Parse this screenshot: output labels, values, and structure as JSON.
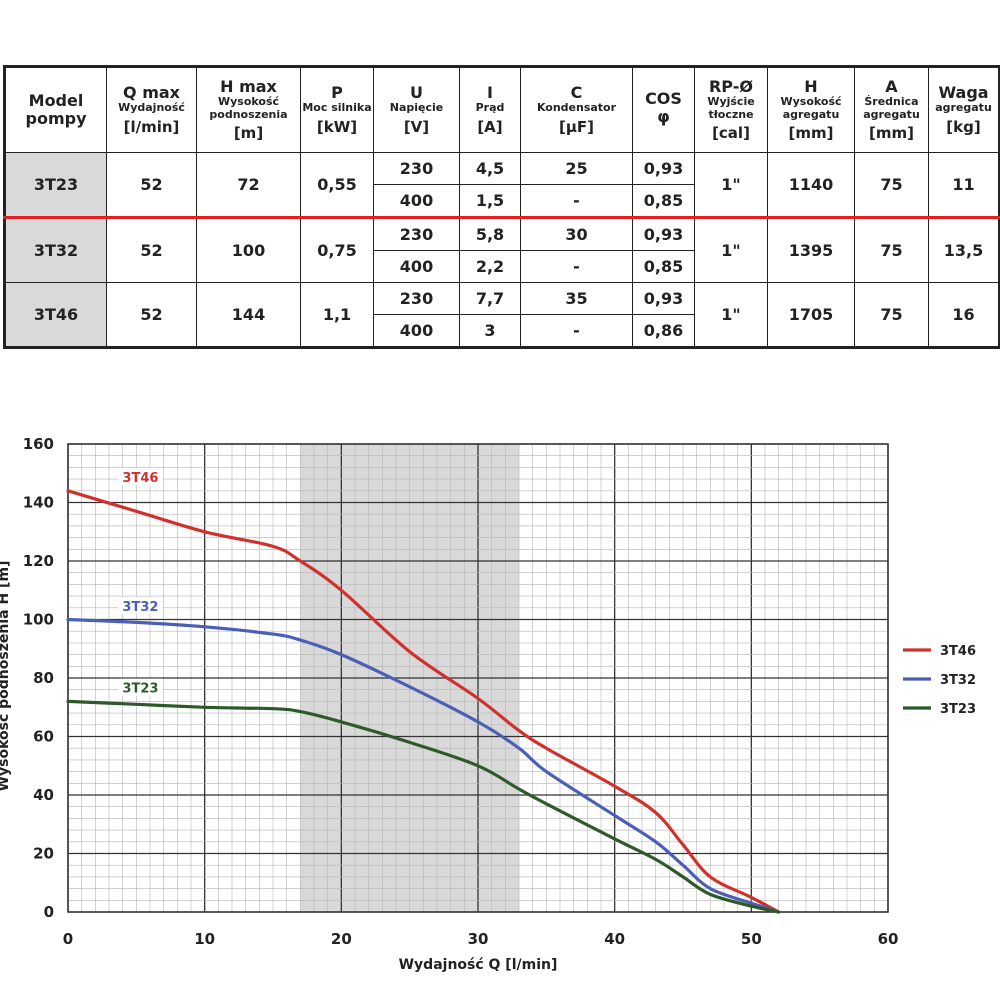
{
  "table": {
    "headers": [
      {
        "sym": "Model pompy",
        "desc": "",
        "unit": ""
      },
      {
        "sym": "Q max",
        "desc": "Wydajność",
        "unit": "[l/min]"
      },
      {
        "sym": "H max",
        "desc": "Wysokość podnoszenia",
        "unit": "[m]"
      },
      {
        "sym": "P",
        "desc": "Moc silnika",
        "unit": "[kW]"
      },
      {
        "sym": "U",
        "desc": "Napięcie",
        "unit": "[V]"
      },
      {
        "sym": "I",
        "desc": "Prąd",
        "unit": "[A]"
      },
      {
        "sym": "C",
        "desc": "Kondensator",
        "unit": "[µF]"
      },
      {
        "sym": "COS",
        "desc": "φ",
        "unit": ""
      },
      {
        "sym": "RP-Ø",
        "desc": "Wyjście tłoczne",
        "unit": "[cal]"
      },
      {
        "sym": "H",
        "desc": "Wysokość agregatu",
        "unit": "[mm]"
      },
      {
        "sym": "A",
        "desc": "Średnica agregatu",
        "unit": "[mm]"
      },
      {
        "sym": "Waga",
        "desc": "agregatu",
        "unit": "[kg]"
      }
    ],
    "models": [
      {
        "model": "3T23",
        "qmax": "52",
        "hmax": "72",
        "p": "0,55",
        "rows": [
          {
            "u": "230",
            "i": "4,5",
            "c": "25",
            "cos": "0,93"
          },
          {
            "u": "400",
            "i": "1,5",
            "c": "-",
            "cos": "0,85"
          }
        ],
        "rp": "1\"",
        "h": "1140",
        "a": "75",
        "waga": "11"
      },
      {
        "model": "3T32",
        "qmax": "52",
        "hmax": "100",
        "p": "0,75",
        "rows": [
          {
            "u": "230",
            "i": "5,8",
            "c": "30",
            "cos": "0,93"
          },
          {
            "u": "400",
            "i": "2,2",
            "c": "-",
            "cos": "0,85"
          }
        ],
        "rp": "1\"",
        "h": "1395",
        "a": "75",
        "waga": "13,5"
      },
      {
        "model": "3T46",
        "qmax": "52",
        "hmax": "144",
        "p": "1,1",
        "rows": [
          {
            "u": "230",
            "i": "7,7",
            "c": "35",
            "cos": "0,93"
          },
          {
            "u": "400",
            "i": "3",
            "c": "-",
            "cos": "0,86"
          }
        ],
        "rp": "1\"",
        "h": "1705",
        "a": "75",
        "waga": "16"
      }
    ],
    "highlight_color": "#e41f1f",
    "model_cell_color": "#d9d9d9"
  },
  "chart_data": {
    "type": "line",
    "title": "",
    "xlabel": "Wydajność Q [l/min]",
    "ylabel": "Wysokość podnoszenia H [m]",
    "xlim": [
      0,
      60
    ],
    "ylim": [
      0,
      160
    ],
    "xticks": [
      0,
      10,
      20,
      30,
      40,
      50,
      60
    ],
    "yticks": [
      0,
      20,
      40,
      60,
      80,
      100,
      120,
      140,
      160
    ],
    "grid": true,
    "shaded_range_x": [
      17,
      33
    ],
    "shade_color": "#d9d9d9",
    "legend_position": "right",
    "series": [
      {
        "name": "3T46",
        "color": "#d0312d",
        "x": [
          0,
          5,
          10,
          15,
          17,
          20,
          25,
          30,
          33,
          35,
          40,
          43,
          45,
          47,
          50,
          52
        ],
        "y": [
          144,
          137,
          130,
          125,
          120,
          110,
          89,
          73,
          62,
          56,
          43,
          34,
          23,
          12,
          5,
          0
        ]
      },
      {
        "name": "3T32",
        "color": "#4a5fb5",
        "x": [
          0,
          5,
          10,
          15,
          17,
          20,
          25,
          30,
          33,
          35,
          40,
          43,
          45,
          47,
          50,
          52
        ],
        "y": [
          100,
          99,
          97.5,
          95,
          93,
          88,
          77,
          65,
          56,
          48,
          33,
          24,
          16,
          8,
          3,
          0
        ]
      },
      {
        "name": "3T23",
        "color": "#2e5a2a",
        "x": [
          0,
          5,
          10,
          15,
          17,
          20,
          25,
          30,
          33,
          35,
          40,
          43,
          45,
          47,
          50,
          52
        ],
        "y": [
          72,
          71,
          70,
          69.5,
          68.5,
          65,
          58,
          50,
          42,
          37,
          25,
          18,
          12,
          6,
          2,
          0
        ]
      }
    ]
  }
}
